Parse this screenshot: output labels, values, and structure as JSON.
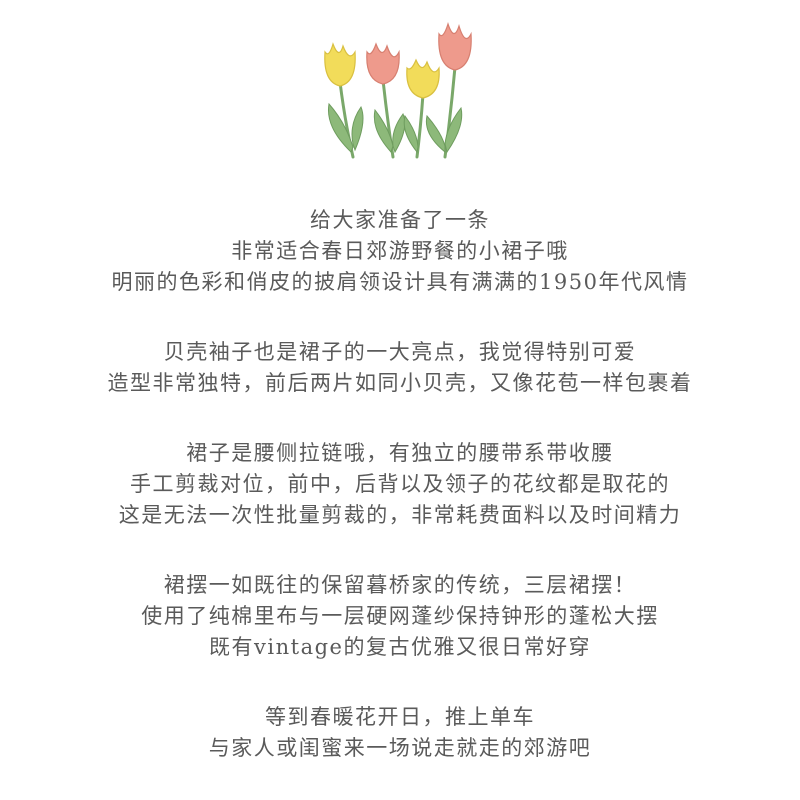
{
  "colors": {
    "background": "#ffffff",
    "text": "#5a5a5a",
    "tulip_yellow": "#f2dc5a",
    "tulip_pink": "#ee9a8c",
    "stem_green": "#7aa86a"
  },
  "illustration": {
    "icon": "tulips-icon"
  },
  "paragraphs": [
    {
      "lines": [
        "给大家准备了一条",
        "非常适合春日郊游野餐的小裙子哦",
        "明丽的色彩和俏皮的披肩领设计具有满满的1950年代风情"
      ]
    },
    {
      "lines": [
        "贝壳袖子也是裙子的一大亮点，我觉得特别可爱",
        "造型非常独特，前后两片如同小贝壳，又像花苞一样包裹着"
      ]
    },
    {
      "lines": [
        "裙子是腰侧拉链哦，有独立的腰带系带收腰",
        "手工剪裁对位，前中，后背以及领子的花纹都是取花的",
        "这是无法一次性批量剪裁的，非常耗费面料以及时间精力"
      ]
    },
    {
      "lines": [
        "裙摆一如既往的保留暮桥家的传统，三层裙摆！",
        "使用了纯棉里布与一层硬网蓬纱保持钟形的蓬松大摆",
        "既有vintage的复古优雅又很日常好穿"
      ]
    },
    {
      "lines": [
        "等到春暖花开日，推上单车",
        "与家人或闺蜜来一场说走就走的郊游吧"
      ]
    }
  ]
}
